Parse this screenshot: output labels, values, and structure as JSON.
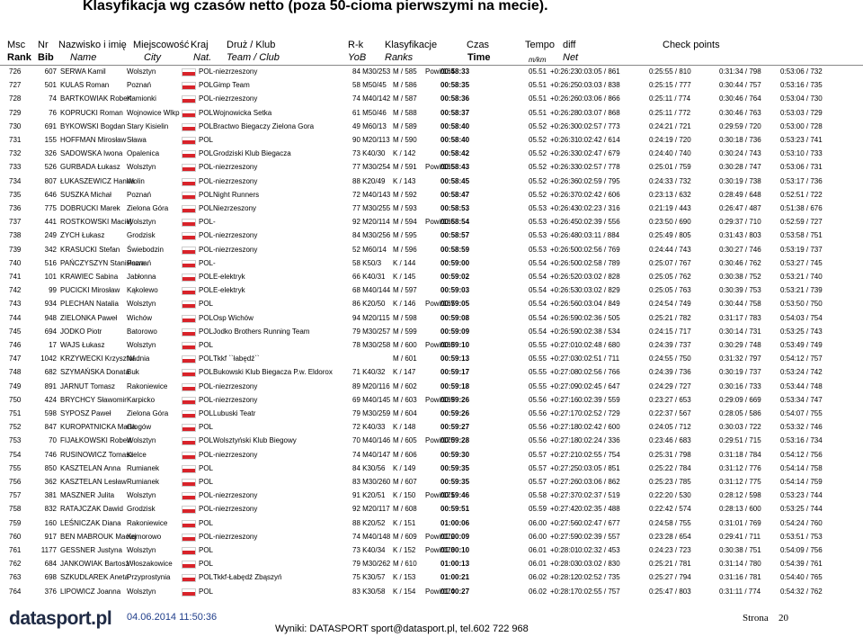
{
  "title": "Klasyfikacja wg czasów netto (poza 50-cioma pierwszymi na mecie).",
  "header": {
    "row1": [
      "Msc",
      "Nr",
      "Nazwisko i imię",
      "Miejscowość",
      "Kraj",
      "Druż / Klub",
      "R-k",
      "Klasyfikacje",
      "Czas",
      "Tempo",
      "diff",
      "Check points"
    ],
    "row2": [
      "Rank",
      "Bib",
      "Name",
      "City",
      "Nat.",
      "Team / Club",
      "YoB",
      "Ranks",
      "Time",
      "m/km",
      "Net"
    ]
  },
  "table": {
    "rows": [
      [
        "726",
        "607",
        "SERWA Kamil",
        "Wolsztyn",
        "POL",
        "-niezrzeszony",
        "84 M30/253",
        "M / 585",
        "Powi/164",
        "00:58:33",
        "05.51",
        "+0:26:23",
        "0:03:05 / 861",
        "0:25:55 / 810",
        "0:31:34 / 798",
        "0:53:06 / 732"
      ],
      [
        "727",
        "501",
        "KULAS Roman",
        "Poznań",
        "POL",
        "Gimp Team",
        "58 M50/45",
        "M / 586",
        null,
        "00:58:35",
        "05.51",
        "+0:26:25",
        "0:03:03 / 838",
        "0:25:15 / 777",
        "0:30:44 / 757",
        "0:53:16 / 735"
      ],
      [
        "728",
        "74",
        "BARTKOWIAK Robert",
        "Kamionki",
        "POL",
        "-niezrzeszony",
        "74 M40/142",
        "M / 587",
        null,
        "00:58:36",
        "05.51",
        "+0:26:26",
        "0:03:06 / 866",
        "0:25:11 / 774",
        "0:30:46 / 764",
        "0:53:04 / 730"
      ],
      [
        "729",
        "76",
        "KOPRUCKI Roman",
        "Wojnowice Wlkp",
        "POL",
        "Wojnowicka Setka",
        "61 M50/46",
        "M / 588",
        null,
        "00:58:37",
        "05.51",
        "+0:26:28",
        "0:03:07 / 868",
        "0:25:11 / 772",
        "0:30:46 / 763",
        "0:53:03 / 729"
      ],
      [
        "730",
        "691",
        "BYKOWSKI Bogdan",
        "Stary Kisielin",
        "POL",
        "Bractwo Biegaczy Zielona Gora",
        "49 M60/13",
        "M / 589",
        null,
        "00:58:40",
        "05.52",
        "+0:26:30",
        "0:02:57 / 773",
        "0:24:21 / 721",
        "0:29:59 / 720",
        "0:53:00 / 728"
      ],
      [
        "731",
        "155",
        "HOFFMAN Mirosław",
        "Sława",
        "POL",
        null,
        "90 M20/113",
        "M / 590",
        null,
        "00:58:40",
        "05.52",
        "+0:26:31",
        "0:02:42 / 614",
        "0:24:19 / 720",
        "0:30:18 / 736",
        "0:53:23 / 741"
      ],
      [
        "732",
        "326",
        "SADOWSKA Iwona",
        "Opalenica",
        "POL",
        "Grodziski Klub Biegacza",
        "73 K40/30",
        "K / 142",
        null,
        "00:58:42",
        "05.52",
        "+0:26:33",
        "0:02:47 / 679",
        "0:24:40 / 740",
        "0:30:24 / 743",
        "0:53:10 / 733"
      ],
      [
        "733",
        "526",
        "GURBADA Łukasz",
        "Wolsztyn",
        "POL",
        "-niezrzeszony",
        "77 M30/254",
        "M / 591",
        "Powi/165",
        "00:58:43",
        "05.52",
        "+0:26:33",
        "0:02:57 / 778",
        "0:25:01 / 759",
        "0:30:28 / 747",
        "0:53:06 / 731"
      ],
      [
        "734",
        "807",
        "ŁUKASZEWICZ Hanna",
        "Wolin",
        "POL",
        "-niezrzeszony",
        "88 K20/49",
        "K / 143",
        null,
        "00:58:45",
        "05.52",
        "+0:26:36",
        "0:02:59 / 795",
        "0:24:33 / 732",
        "0:30:19 / 738",
        "0:53:17 / 736"
      ],
      [
        "735",
        "646",
        "SUSZKA Michał",
        "Poznań",
        "POL",
        "Night Runners",
        "72 M40/143",
        "M / 592",
        null,
        "00:58:47",
        "05.52",
        "+0:26:37",
        "0:02:42 / 606",
        "0:23:13 / 632",
        "0:28:49 / 648",
        "0:52:51 / 722"
      ],
      [
        "736",
        "775",
        "DOBRUCKI Marek",
        "Zielona Góra",
        "POL",
        "Niezrzeszony",
        "77 M30/255",
        "M / 593",
        null,
        "00:58:53",
        "05.53",
        "+0:26:43",
        "0:02:23 / 316",
        "0:21:19 / 443",
        "0:26:47 / 487",
        "0:51:38 / 676"
      ],
      [
        "737",
        "441",
        "ROSTKOWSKI Maciej",
        "Wolsztyn",
        "POL",
        "-",
        "92 M20/114",
        "M / 594",
        "Powi/166",
        "00:58:54",
        "05.53",
        "+0:26:45",
        "0:02:39 / 556",
        "0:23:50 / 690",
        "0:29:37 / 710",
        "0:52:59 / 727"
      ],
      [
        "738",
        "249",
        "ZYCH Łukasz",
        "Grodzisk",
        "POL",
        "-niezrzeszony",
        "84 M30/256",
        "M / 595",
        null,
        "00:58:57",
        "05.53",
        "+0:26:48",
        "0:03:11 / 884",
        "0:25:49 / 805",
        "0:31:43 / 803",
        "0:53:58 / 751"
      ],
      [
        "739",
        "342",
        "KRASUCKI Stefan",
        "Świebodzin",
        "POL",
        "-niezrzeszony",
        "52 M60/14",
        "M / 596",
        null,
        "00:58:59",
        "05.53",
        "+0:26:50",
        "0:02:56 / 769",
        "0:24:44 / 743",
        "0:30:27 / 746",
        "0:53:19 / 737"
      ],
      [
        "740",
        "516",
        "PAŃCZYSZYN Stanisława",
        "Poznań",
        "POL",
        "-",
        "58 K50/3",
        "K / 144",
        null,
        "00:59:00",
        "05.54",
        "+0:26:50",
        "0:02:58 / 789",
        "0:25:07 / 767",
        "0:30:46 / 762",
        "0:53:27 / 745"
      ],
      [
        "741",
        "101",
        "KRAWIEC Sabina",
        "Jabłonna",
        "POL",
        "E-elektryk",
        "66 K40/31",
        "K / 145",
        null,
        "00:59:02",
        "05.54",
        "+0:26:52",
        "0:03:02 / 828",
        "0:25:05 / 762",
        "0:30:38 / 752",
        "0:53:21 / 740"
      ],
      [
        "742",
        "99",
        "PUCICKI Mirosław",
        "Kąkolewo",
        "POL",
        "E-elektryk",
        "68 M40/144",
        "M / 597",
        null,
        "00:59:03",
        "05.54",
        "+0:26:53",
        "0:03:02 / 829",
        "0:25:05 / 763",
        "0:30:39 / 753",
        "0:53:21 / 739"
      ],
      [
        "743",
        "934",
        "PLECHAN Natalia",
        "Wolsztyn",
        "POL",
        null,
        "86 K20/50",
        "K / 146",
        "Powi/167",
        "00:59:05",
        "05.54",
        "+0:26:56",
        "0:03:04 / 849",
        "0:24:54 / 749",
        "0:30:44 / 758",
        "0:53:50 / 750"
      ],
      [
        "744",
        "948",
        "ZIELONKA Paweł",
        "Wichów",
        "POL",
        "Osp Wichów",
        "94 M20/115",
        "M / 598",
        null,
        "00:59:08",
        "05.54",
        "+0:26:59",
        "0:02:36 / 505",
        "0:25:21 / 782",
        "0:31:17 / 783",
        "0:54:03 / 754"
      ],
      [
        "745",
        "694",
        "JODKO Piotr",
        "Batorowo",
        "POL",
        "Jodko Brothers Running Team",
        "79 M30/257",
        "M / 599",
        null,
        "00:59:09",
        "05.54",
        "+0:26:59",
        "0:02:38 / 534",
        "0:24:15 / 717",
        "0:30:14 / 731",
        "0:53:25 / 743"
      ],
      [
        "746",
        "17",
        "WAJS Łukasz",
        "Wolsztyn",
        "POL",
        null,
        "78 M30/258",
        "M / 600",
        "Powi/168",
        "00:59:10",
        "05.55",
        "+0:27:01",
        "0:02:48 / 680",
        "0:24:39 / 737",
        "0:30:29 / 748",
        "0:53:49 / 749"
      ],
      [
        "747",
        "1042",
        "KRZYWECKI Krzysztof",
        "Nadnia",
        "POL",
        "Tkkf ``łabędź``",
        null,
        "M / 601",
        null,
        "00:59:13",
        "05.55",
        "+0:27:03",
        "0:02:51 / 711",
        "0:24:55 / 750",
        "0:31:32 / 797",
        "0:54:12 / 757"
      ],
      [
        "748",
        "682",
        "SZYMAŃSKA Donata",
        "Buk",
        "POL",
        "Bukowski Klub Biegacza P.w. Eldorox",
        "71 K40/32",
        "K / 147",
        null,
        "00:59:17",
        "05.55",
        "+0:27:08",
        "0:02:56 / 766",
        "0:24:39 / 736",
        "0:30:19 / 737",
        "0:53:24 / 742"
      ],
      [
        "749",
        "891",
        "JARNUT Tomasz",
        "Rakoniewice",
        "POL",
        "-niezrzeszony",
        "89 M20/116",
        "M / 602",
        null,
        "00:59:18",
        "05.55",
        "+0:27:09",
        "0:02:45 / 647",
        "0:24:29 / 727",
        "0:30:16 / 733",
        "0:53:44 / 748"
      ],
      [
        "750",
        "424",
        "BRYCHCY Sławomir",
        "Karpicko",
        "POL",
        "-niezrzeszony",
        "69 M40/145",
        "M / 603",
        "Powi/169",
        "00:59:26",
        "05.56",
        "+0:27:16",
        "0:02:39 / 559",
        "0:23:27 / 653",
        "0:29:09 / 669",
        "0:53:34 / 747"
      ],
      [
        "751",
        "598",
        "SYPOSZ Paweł",
        "Zielona Góra",
        "POL",
        "Lubuski Teatr",
        "79 M30/259",
        "M / 604",
        null,
        "00:59:26",
        "05.56",
        "+0:27:17",
        "0:02:52 / 729",
        "0:22:37 / 567",
        "0:28:05 / 586",
        "0:54:07 / 755"
      ],
      [
        "752",
        "847",
        "KUROPATNICKA Marta",
        "Głogów",
        "POL",
        null,
        "72 K40/33",
        "K / 148",
        null,
        "00:59:27",
        "05.56",
        "+0:27:18",
        "0:02:42 / 600",
        "0:24:05 / 712",
        "0:30:03 / 722",
        "0:53:32 / 746"
      ],
      [
        "753",
        "70",
        "FIJAŁKOWSKI Robert",
        "Wolsztyn",
        "POL",
        "Wolsztyński Klub Biegowy",
        "70 M40/146",
        "M / 605",
        "Powi/170",
        "00:59:28",
        "05.56",
        "+0:27:18",
        "0:02:24 / 336",
        "0:23:46 / 683",
        "0:29:51 / 715",
        "0:53:16 / 734"
      ],
      [
        "754",
        "746",
        "RUSINOWICZ Tomasz",
        "Kielce",
        "POL",
        "-niezrzeszony",
        "74 M40/147",
        "M / 606",
        null,
        "00:59:30",
        "05.57",
        "+0:27:21",
        "0:02:55 / 754",
        "0:25:31 / 798",
        "0:31:18 / 784",
        "0:54:12 / 756"
      ],
      [
        "755",
        "850",
        "KASZTELAN Anna",
        "Rumianek",
        "POL",
        null,
        "84 K30/56",
        "K / 149",
        null,
        "00:59:35",
        "05.57",
        "+0:27:25",
        "0:03:05 / 851",
        "0:25:22 / 784",
        "0:31:12 / 776",
        "0:54:14 / 758"
      ],
      [
        "756",
        "362",
        "KASZTELAN Lesław",
        "Rumianek",
        "POL",
        null,
        "83 M30/260",
        "M / 607",
        null,
        "00:59:35",
        "05.57",
        "+0:27:26",
        "0:03:06 / 862",
        "0:25:23 / 785",
        "0:31:12 / 775",
        "0:54:14 / 759"
      ],
      [
        "757",
        "381",
        "MASZNER Julita",
        "Wolsztyn",
        "POL",
        "-niezrzeszony",
        "91 K20/51",
        "K / 150",
        "Powi/171",
        "00:59:46",
        "05.58",
        "+0:27:37",
        "0:02:37 / 519",
        "0:22:20 / 530",
        "0:28:12 / 598",
        "0:53:23 / 744"
      ],
      [
        "758",
        "832",
        "RATAJCZAK Dawid",
        "Grodzisk",
        "POL",
        "-niezrzeszony",
        "92 M20/117",
        "M / 608",
        null,
        "00:59:51",
        "05.59",
        "+0:27:42",
        "0:02:35 / 488",
        "0:22:42 / 574",
        "0:28:13 / 600",
        "0:53:25 / 744"
      ],
      [
        "759",
        "160",
        "LEŚNICZAK Diana",
        "Rakoniewice",
        "POL",
        null,
        "88 K20/52",
        "K / 151",
        null,
        "01:00:06",
        "06.00",
        "+0:27:56",
        "0:02:47 / 677",
        "0:24:58 / 755",
        "0:31:01 / 769",
        "0:54:24 / 760"
      ],
      [
        "760",
        "917",
        "BEN MABROUK Maciej",
        "Komorowo",
        "POL",
        "-niezrzeszony",
        "74 M40/148",
        "M / 609",
        "Powi/172",
        "01:00:09",
        "06.00",
        "+0:27:59",
        "0:02:39 / 557",
        "0:23:28 / 654",
        "0:29:41 / 711",
        "0:53:51 / 753"
      ],
      [
        "761",
        "1177",
        "GESSNER Justyna",
        "Wolsztyn",
        "POL",
        null,
        "73 K40/34",
        "K / 152",
        "Powi/173",
        "01:00:10",
        "06.01",
        "+0:28:01",
        "0:02:32 / 453",
        "0:24:23 / 723",
        "0:30:38 / 751",
        "0:54:09 / 756"
      ],
      [
        "762",
        "684",
        "JANKOWIAK Bartosz",
        "Włoszakowice",
        "POL",
        null,
        "79 M30/262",
        "M / 610",
        null,
        "01:00:13",
        "06.01",
        "+0:28:03",
        "0:03:02 / 830",
        "0:25:21 / 781",
        "0:31:14 / 780",
        "0:54:39 / 761"
      ],
      [
        "763",
        "698",
        "SZKUDLAREK Aneta",
        "Przyprostynia",
        "POL",
        "Tkkf-Łabędź Zbąszyń",
        "75 K30/57",
        "K / 153",
        null,
        "01:00:21",
        "06.02",
        "+0:28:12",
        "0:02:52 / 735",
        "0:25:27 / 794",
        "0:31:16 / 781",
        "0:54:40 / 765"
      ],
      [
        "764",
        "376",
        "LIPOWICZ Joanna",
        "Wolsztyn",
        "POL",
        null,
        "83 K30/58",
        "K / 154",
        "Powi/174",
        "01:00:27",
        "06.02",
        "+0:28:17",
        "0:02:55 / 757",
        "0:25:47 / 803",
        "0:31:11 / 774",
        "0:54:32 / 762"
      ]
    ]
  },
  "footer": {
    "logo": "datasport.pl",
    "date": "04.06.2014 11:50:36",
    "contact": "Wyniki: DATASPORT sport@datasport.pl, tel.602 722 968",
    "page_label": "Strona",
    "page": "20"
  }
}
